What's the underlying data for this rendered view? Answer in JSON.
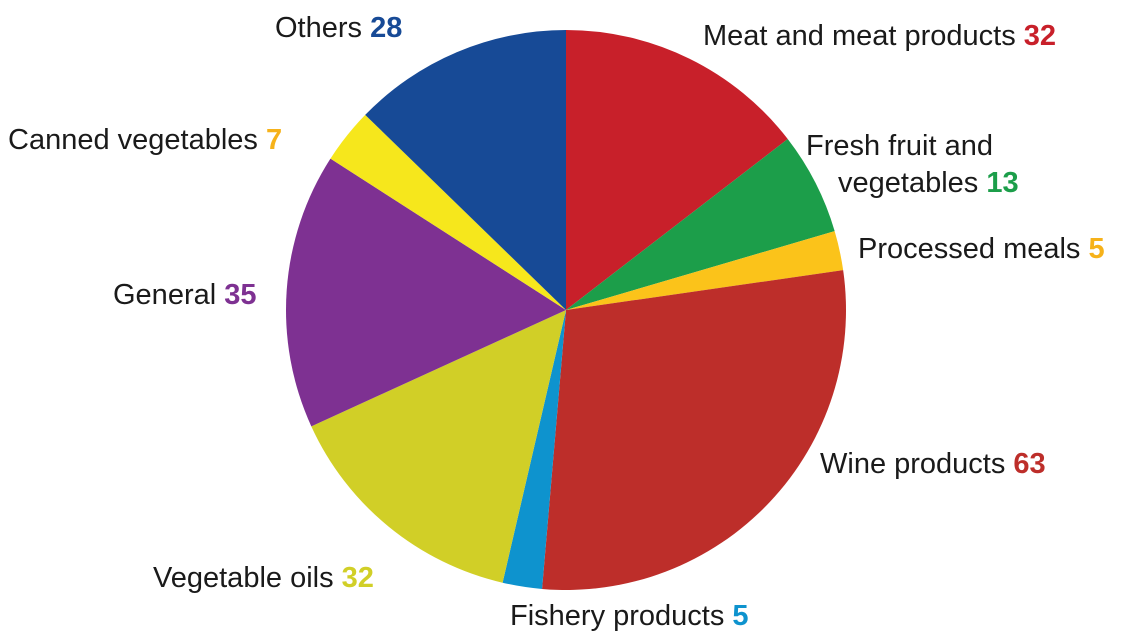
{
  "chart_data": {
    "type": "pie",
    "title": "",
    "start_angle_deg": 0,
    "direction": "clockwise",
    "slices": [
      {
        "name": "Meat and meat products",
        "value": 32,
        "color": "#C8202A",
        "value_color": "#C8202A"
      },
      {
        "name": "Fresh fruit and vegetables",
        "name_lines": [
          "Fresh fruit and",
          "vegetables"
        ],
        "value": 13,
        "color": "#1C9E4A",
        "value_color": "#1C9E4A"
      },
      {
        "name": "Processed meals",
        "value": 5,
        "color": "#FBC31A",
        "value_color": "#F6B21A"
      },
      {
        "name": "Wine products",
        "value": 63,
        "color": "#BD2E2A",
        "value_color": "#BD2E2A"
      },
      {
        "name": "Fishery products",
        "value": 5,
        "color": "#0E93CE",
        "value_color": "#0E93CE"
      },
      {
        "name": "Vegetable oils",
        "value": 32,
        "color": "#D1CF27",
        "value_color": "#D1CF27"
      },
      {
        "name": "General",
        "value": 35,
        "color": "#7E3192",
        "value_color": "#7E3192"
      },
      {
        "name": "Canned vegetables",
        "value": 7,
        "color": "#F6E71C",
        "value_color": "#F6B21A"
      },
      {
        "name": "Others",
        "value": 28,
        "color": "#174A96",
        "value_color": "#174A96"
      }
    ]
  }
}
